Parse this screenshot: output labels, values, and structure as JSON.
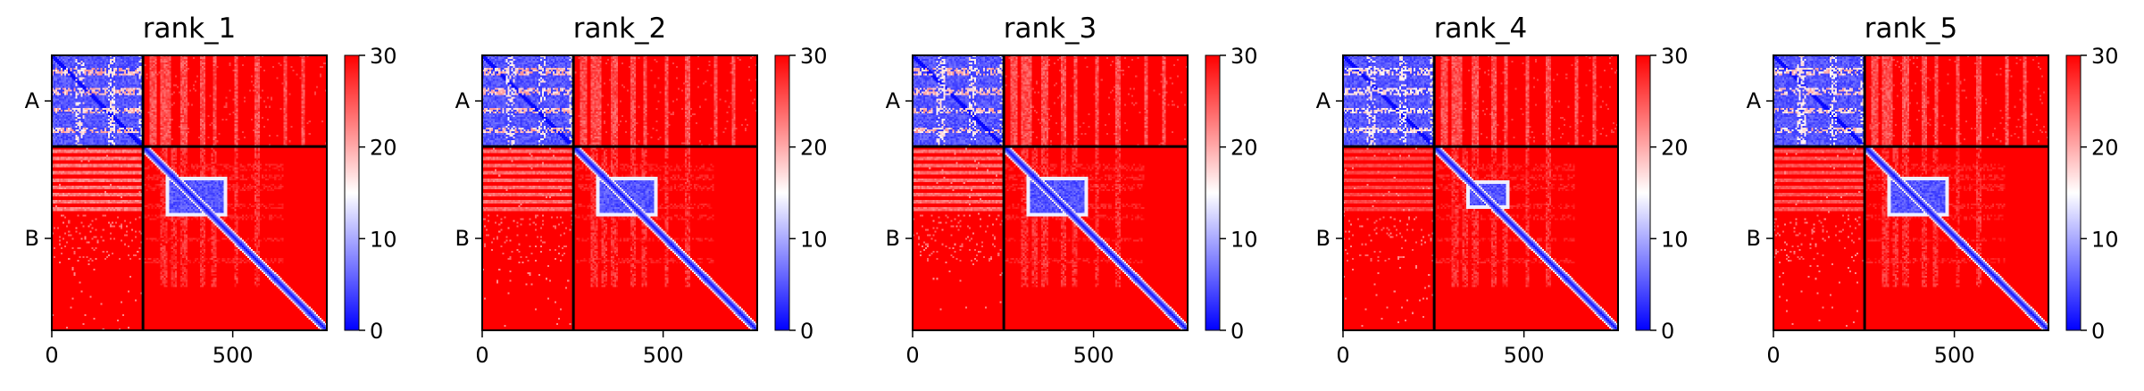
{
  "chart_data": [
    {
      "type": "heatmap",
      "title": "rank_1",
      "x_ticks": [
        "0",
        "500"
      ],
      "y_ticks": [
        "A",
        "B"
      ],
      "colorbar": {
        "ticks": [
          "0",
          "10",
          "20",
          "30"
        ],
        "min": 0,
        "max": 30,
        "colors": [
          "#0000ff",
          "#ffffff",
          "#ff0000"
        ]
      },
      "matrix_size": 760,
      "chain_boundary": 252,
      "block_chains": [
        "A",
        "B"
      ],
      "features": {
        "rows_a_band": 1.0,
        "b_vs_a_left_band": 0.9,
        "col_stripes": [
          [
            270,
            290
          ],
          [
            300,
            330
          ],
          [
            355,
            375
          ],
          [
            410,
            425
          ],
          [
            445,
            455
          ],
          [
            505,
            515
          ],
          [
            560,
            575
          ],
          [
            640,
            650
          ],
          [
            690,
            700
          ]
        ],
        "b_stripes": [
          [
            300,
            320
          ],
          [
            330,
            345
          ],
          [
            355,
            375
          ],
          [
            410,
            425
          ],
          [
            440,
            455
          ],
          [
            505,
            515
          ],
          [
            560,
            575
          ]
        ],
        "b_blue_box": [
          315,
          485,
          335,
          445
        ]
      }
    },
    {
      "type": "heatmap",
      "title": "rank_2",
      "x_ticks": [
        "0",
        "500"
      ],
      "y_ticks": [
        "A",
        "B"
      ],
      "colorbar": {
        "ticks": [
          "0",
          "10",
          "20",
          "30"
        ],
        "min": 0,
        "max": 30,
        "colors": [
          "#0000ff",
          "#ffffff",
          "#ff0000"
        ]
      },
      "matrix_size": 760,
      "chain_boundary": 252,
      "block_chains": [
        "A",
        "B"
      ],
      "features": {
        "rows_a_band": 1.0,
        "b_vs_a_left_band": 0.8,
        "col_stripes": [
          [
            270,
            290
          ],
          [
            300,
            330
          ],
          [
            355,
            375
          ],
          [
            410,
            425
          ],
          [
            445,
            455
          ],
          [
            505,
            515
          ],
          [
            560,
            575
          ],
          [
            640,
            650
          ],
          [
            690,
            700
          ]
        ],
        "b_stripes": [
          [
            300,
            320
          ],
          [
            330,
            345
          ],
          [
            355,
            375
          ],
          [
            410,
            425
          ],
          [
            440,
            455
          ],
          [
            505,
            515
          ],
          [
            560,
            575
          ]
        ],
        "b_blue_box": [
          315,
          485,
          335,
          445
        ]
      }
    },
    {
      "type": "heatmap",
      "title": "rank_3",
      "x_ticks": [
        "0",
        "500"
      ],
      "y_ticks": [
        "A",
        "B"
      ],
      "colorbar": {
        "ticks": [
          "0",
          "10",
          "20",
          "30"
        ],
        "min": 0,
        "max": 30,
        "colors": [
          "#0000ff",
          "#ffffff",
          "#ff0000"
        ]
      },
      "matrix_size": 760,
      "chain_boundary": 252,
      "block_chains": [
        "A",
        "B"
      ],
      "features": {
        "rows_a_band": 1.0,
        "b_vs_a_left_band": 0.8,
        "col_stripes": [
          [
            270,
            290
          ],
          [
            300,
            330
          ],
          [
            355,
            375
          ],
          [
            410,
            425
          ],
          [
            445,
            455
          ],
          [
            505,
            515
          ],
          [
            560,
            575
          ],
          [
            640,
            650
          ],
          [
            690,
            700
          ]
        ],
        "b_stripes": [
          [
            300,
            320
          ],
          [
            330,
            345
          ],
          [
            355,
            375
          ],
          [
            410,
            425
          ],
          [
            440,
            455
          ],
          [
            505,
            515
          ],
          [
            560,
            575
          ]
        ],
        "b_blue_box": [
          315,
          485,
          335,
          445
        ]
      }
    },
    {
      "type": "heatmap",
      "title": "rank_4",
      "x_ticks": [
        "0",
        "500"
      ],
      "y_ticks": [
        "A",
        "B"
      ],
      "colorbar": {
        "ticks": [
          "0",
          "10",
          "20",
          "30"
        ],
        "min": 0,
        "max": 30,
        "colors": [
          "#0000ff",
          "#ffffff",
          "#ff0000"
        ]
      },
      "matrix_size": 760,
      "chain_boundary": 252,
      "block_chains": [
        "A",
        "B"
      ],
      "features": {
        "rows_a_band": 0.7,
        "b_vs_a_left_band": 0.5,
        "col_stripes": [
          [
            270,
            290
          ],
          [
            300,
            330
          ],
          [
            355,
            375
          ],
          [
            410,
            425
          ],
          [
            445,
            455
          ],
          [
            505,
            515
          ],
          [
            560,
            575
          ],
          [
            640,
            650
          ],
          [
            690,
            700
          ]
        ],
        "b_stripes": [
          [
            300,
            320
          ],
          [
            330,
            345
          ],
          [
            355,
            375
          ],
          [
            410,
            425
          ],
          [
            440,
            455
          ],
          [
            505,
            515
          ],
          [
            560,
            575
          ]
        ],
        "b_blue_box": [
          340,
          460,
          345,
          425
        ]
      }
    },
    {
      "type": "heatmap",
      "title": "rank_5",
      "x_ticks": [
        "0",
        "500"
      ],
      "y_ticks": [
        "A",
        "B"
      ],
      "colorbar": {
        "ticks": [
          "0",
          "10",
          "20",
          "30"
        ],
        "min": 0,
        "max": 30,
        "colors": [
          "#0000ff",
          "#ffffff",
          "#ff0000"
        ]
      },
      "matrix_size": 760,
      "chain_boundary": 252,
      "block_chains": [
        "A",
        "B"
      ],
      "features": {
        "rows_a_band": 0.9,
        "b_vs_a_left_band": 0.6,
        "col_stripes": [
          [
            270,
            290
          ],
          [
            300,
            330
          ],
          [
            355,
            375
          ],
          [
            410,
            425
          ],
          [
            445,
            455
          ],
          [
            505,
            515
          ],
          [
            560,
            575
          ],
          [
            640,
            650
          ],
          [
            690,
            700
          ]
        ],
        "b_stripes": [
          [
            300,
            320
          ],
          [
            330,
            345
          ],
          [
            355,
            375
          ],
          [
            410,
            425
          ],
          [
            440,
            455
          ],
          [
            505,
            515
          ],
          [
            560,
            575
          ]
        ],
        "b_blue_box": [
          315,
          485,
          335,
          445
        ]
      }
    }
  ]
}
